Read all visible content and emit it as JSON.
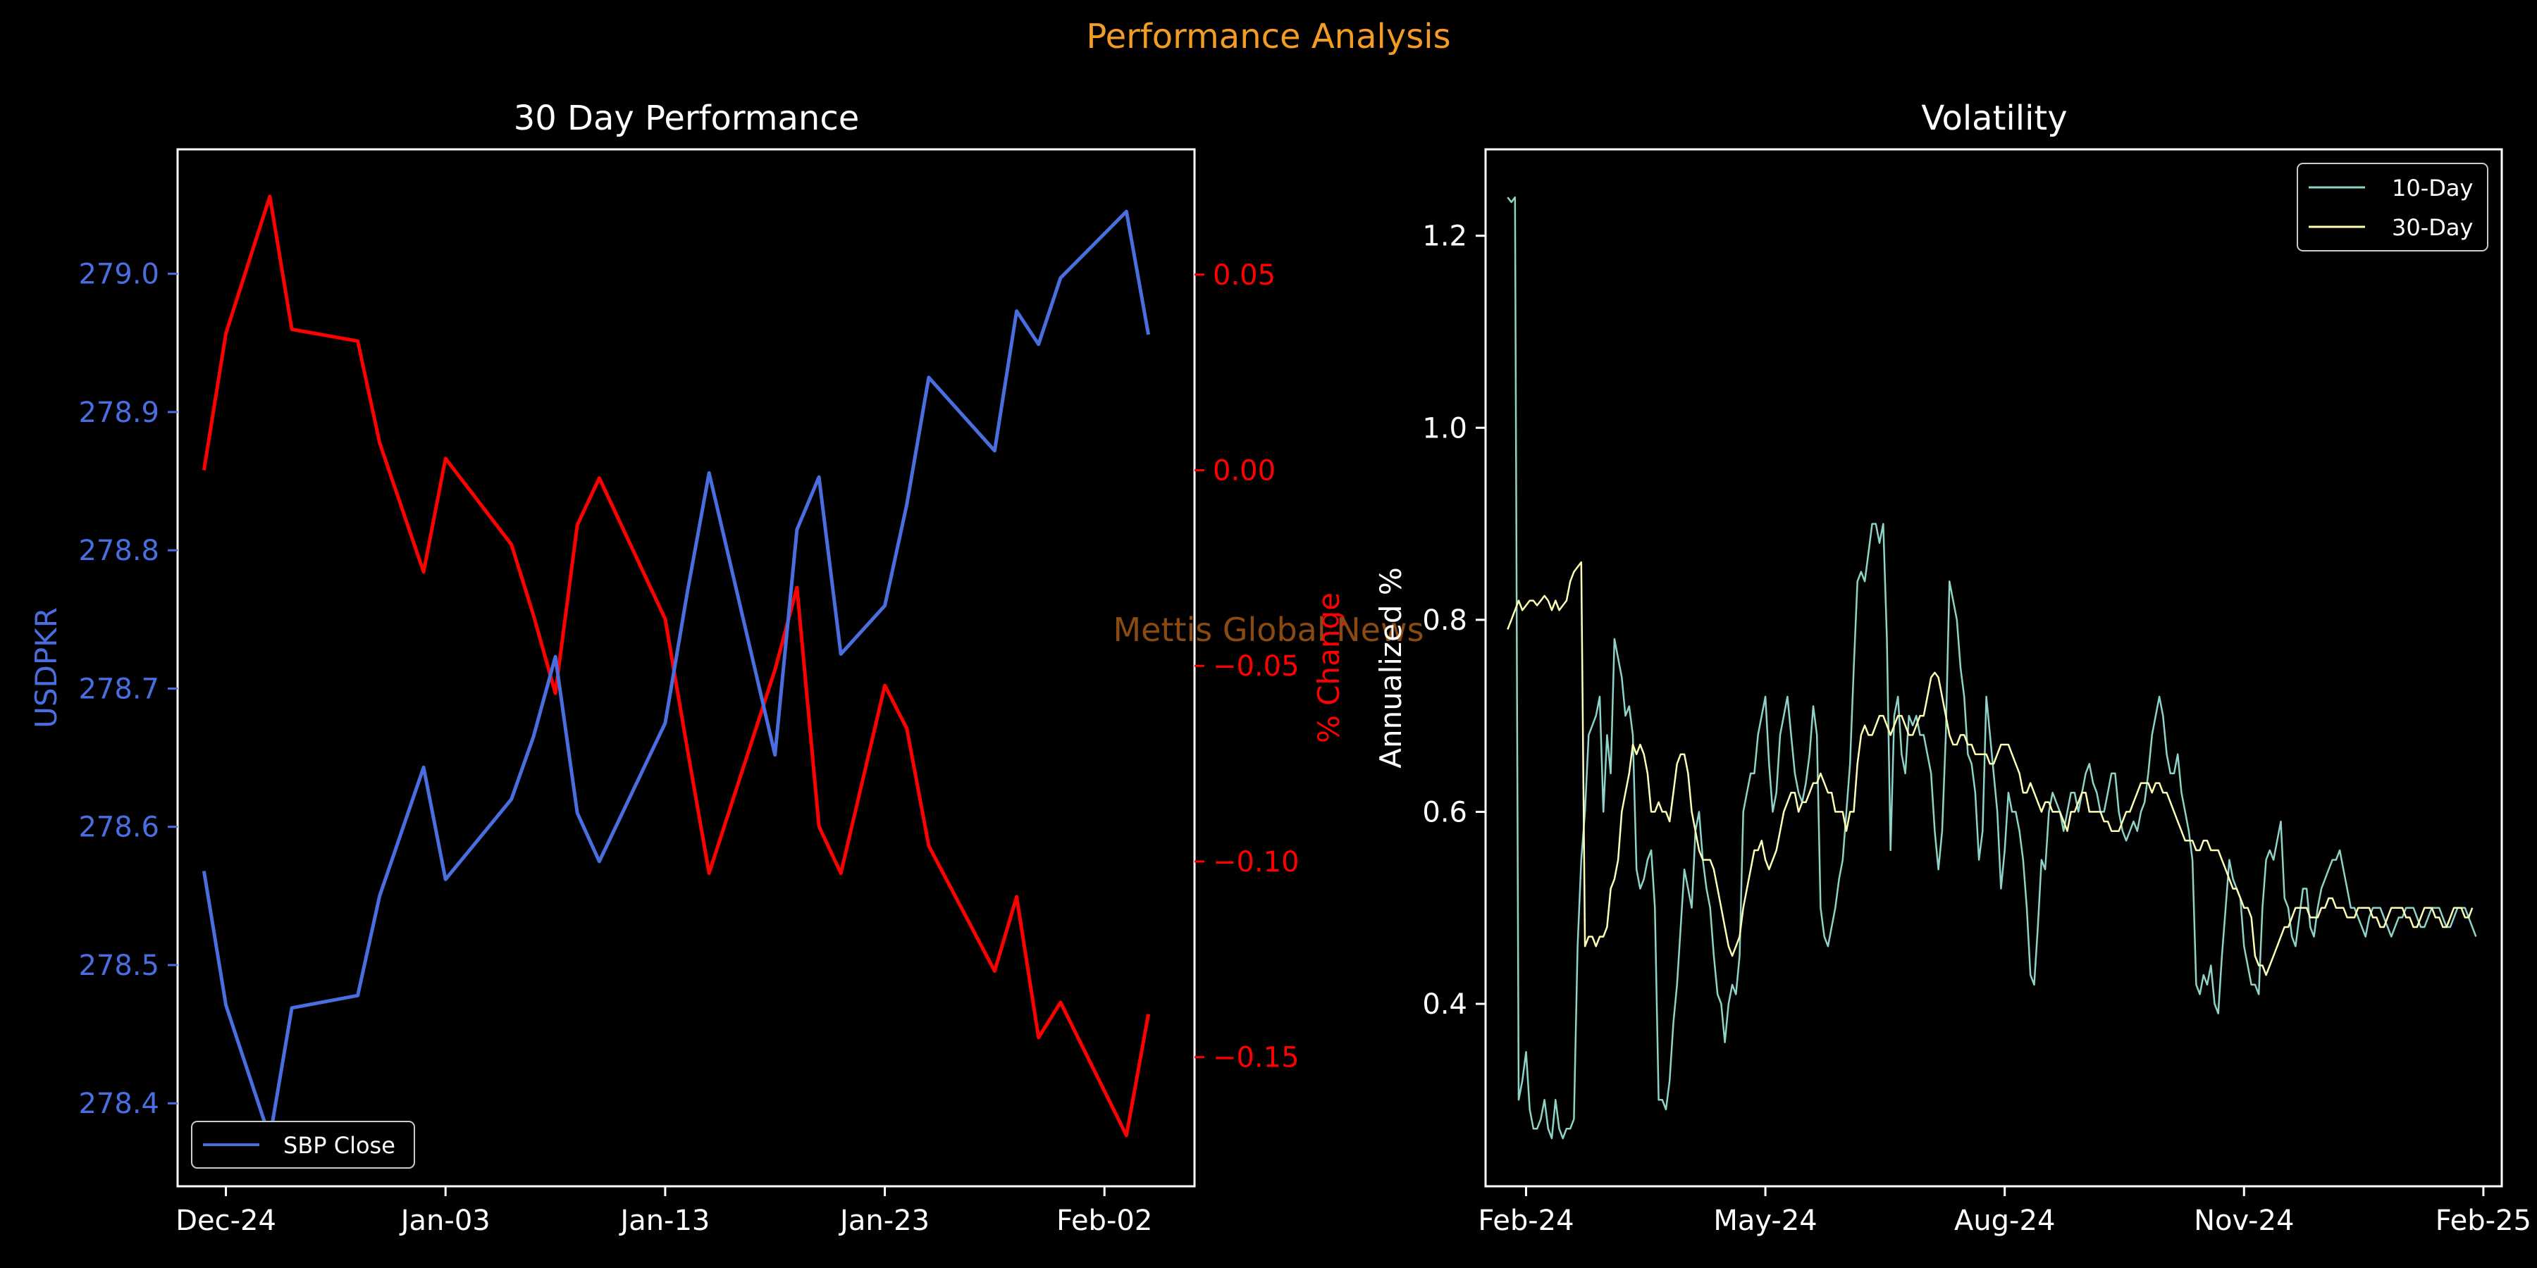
{
  "figure": {
    "suptitle": "Performance Analysis",
    "watermark": "Mettis Global News",
    "colors": {
      "background": "#000000",
      "suptitle": "#f39c24",
      "watermark": "#8a4a12",
      "axes": "#ffffff",
      "usd_line": "#4a6ee0",
      "pct_line": "#ff0000",
      "vol10": "#8dd3c7",
      "vol30": "#ffffb3"
    }
  },
  "chart_data": [
    {
      "type": "line",
      "title": "30 Day Performance",
      "xlabel": "",
      "ylabel": "USDPKR",
      "y2label": "% Change",
      "x_ticks": [
        {
          "label": "Dec-24",
          "day": 0
        },
        {
          "label": "Jan-03",
          "day": 10
        },
        {
          "label": "Jan-13",
          "day": 20
        },
        {
          "label": "Jan-23",
          "day": 30
        },
        {
          "label": "Feb-02",
          "day": 40
        }
      ],
      "xlim": [
        -2.2,
        44.1
      ],
      "ylim": [
        278.34,
        279.09
      ],
      "y_ticks": [
        "278.4",
        "278.5",
        "278.6",
        "278.7",
        "278.8",
        "278.9",
        "279.0"
      ],
      "y2lim": [
        -0.183,
        0.082
      ],
      "y2_ticks": [
        {
          "label": "0.05",
          "value": 0.05
        },
        {
          "label": "0.00",
          "value": 0.0
        },
        {
          "label": "−0.05",
          "value": -0.05
        },
        {
          "label": "−0.10",
          "value": -0.1
        },
        {
          "label": "−0.15",
          "value": -0.15
        }
      ],
      "legend": {
        "position": "lower-left",
        "entries": [
          "SBP Close"
        ]
      },
      "series": [
        {
          "name": "SBP Close",
          "axis": "left",
          "x": [
            -1,
            0,
            2,
            3,
            6,
            7,
            9,
            10,
            13,
            14,
            15,
            16,
            17,
            20,
            21,
            22,
            25,
            26,
            27,
            28,
            30,
            31,
            32,
            35,
            36,
            37,
            38,
            41,
            42
          ],
          "values": [
            278.568,
            278.471,
            278.375,
            278.469,
            278.478,
            278.55,
            278.643,
            278.562,
            278.62,
            278.665,
            278.723,
            278.61,
            278.575,
            278.675,
            278.769,
            278.856,
            278.652,
            278.815,
            278.853,
            278.725,
            278.76,
            278.833,
            278.925,
            278.872,
            278.973,
            278.949,
            278.997,
            279.045,
            278.956
          ]
        },
        {
          "name": "% Change",
          "axis": "right",
          "x": [
            -1,
            0,
            2,
            3,
            6,
            7,
            9,
            10,
            13,
            14,
            15,
            16,
            17,
            20,
            21,
            22,
            25,
            26,
            27,
            28,
            30,
            31,
            32,
            35,
            36,
            37,
            38,
            41,
            42
          ],
          "values": [
            0.0,
            0.035,
            0.07,
            0.036,
            0.033,
            0.007,
            -0.026,
            0.003,
            -0.019,
            -0.037,
            -0.057,
            -0.014,
            -0.002,
            -0.038,
            -0.071,
            -0.103,
            -0.051,
            -0.03,
            -0.091,
            -0.103,
            -0.055,
            -0.066,
            -0.096,
            -0.128,
            -0.109,
            -0.145,
            -0.136,
            -0.17,
            -0.139
          ]
        }
      ]
    },
    {
      "type": "line",
      "title": "Volatility",
      "xlabel": "",
      "ylabel": "Annualized %",
      "x_ticks": [
        {
          "label": "Feb-24",
          "index": 5
        },
        {
          "label": "May-24",
          "index": 70
        },
        {
          "label": "Aug-24",
          "index": 135
        },
        {
          "label": "Nov-24",
          "index": 200
        },
        {
          "label": "Feb-25",
          "index": 265
        }
      ],
      "xlim": [
        -6,
        270
      ],
      "ylim": [
        0.21,
        1.29
      ],
      "y_ticks": [
        {
          "label": "0.4",
          "value": 0.4
        },
        {
          "label": "0.6",
          "value": 0.6
        },
        {
          "label": "0.8",
          "value": 0.8
        },
        {
          "label": "1.0",
          "value": 1.0
        },
        {
          "label": "1.2",
          "value": 1.2
        }
      ],
      "legend": {
        "position": "top-right",
        "entries": [
          "10-Day",
          "30-Day"
        ]
      },
      "series": [
        {
          "name": "10-Day",
          "values": [
            1.24,
            1.235,
            1.24,
            0.3,
            0.32,
            0.35,
            0.29,
            0.27,
            0.27,
            0.28,
            0.3,
            0.27,
            0.26,
            0.3,
            0.27,
            0.26,
            0.27,
            0.27,
            0.28,
            0.46,
            0.55,
            0.6,
            0.68,
            0.69,
            0.7,
            0.72,
            0.6,
            0.68,
            0.64,
            0.78,
            0.76,
            0.74,
            0.7,
            0.71,
            0.68,
            0.54,
            0.52,
            0.53,
            0.55,
            0.56,
            0.5,
            0.3,
            0.3,
            0.29,
            0.32,
            0.38,
            0.42,
            0.48,
            0.54,
            0.52,
            0.5,
            0.58,
            0.6,
            0.55,
            0.52,
            0.5,
            0.45,
            0.41,
            0.4,
            0.36,
            0.4,
            0.42,
            0.41,
            0.45,
            0.6,
            0.62,
            0.64,
            0.64,
            0.68,
            0.7,
            0.72,
            0.65,
            0.6,
            0.62,
            0.68,
            0.7,
            0.72,
            0.68,
            0.64,
            0.62,
            0.61,
            0.63,
            0.66,
            0.71,
            0.68,
            0.5,
            0.47,
            0.46,
            0.48,
            0.5,
            0.53,
            0.55,
            0.6,
            0.65,
            0.75,
            0.84,
            0.85,
            0.84,
            0.87,
            0.9,
            0.9,
            0.88,
            0.9,
            0.78,
            0.56,
            0.7,
            0.72,
            0.66,
            0.64,
            0.7,
            0.69,
            0.7,
            0.68,
            0.68,
            0.66,
            0.64,
            0.58,
            0.54,
            0.58,
            0.68,
            0.84,
            0.82,
            0.8,
            0.75,
            0.72,
            0.66,
            0.65,
            0.62,
            0.55,
            0.58,
            0.72,
            0.68,
            0.64,
            0.6,
            0.52,
            0.56,
            0.62,
            0.6,
            0.6,
            0.58,
            0.55,
            0.5,
            0.43,
            0.42,
            0.48,
            0.55,
            0.54,
            0.6,
            0.62,
            0.61,
            0.6,
            0.58,
            0.6,
            0.62,
            0.62,
            0.6,
            0.62,
            0.64,
            0.65,
            0.63,
            0.62,
            0.6,
            0.6,
            0.62,
            0.64,
            0.64,
            0.6,
            0.58,
            0.57,
            0.58,
            0.59,
            0.58,
            0.6,
            0.61,
            0.64,
            0.68,
            0.7,
            0.72,
            0.7,
            0.66,
            0.64,
            0.64,
            0.66,
            0.62,
            0.6,
            0.58,
            0.55,
            0.42,
            0.41,
            0.43,
            0.42,
            0.44,
            0.4,
            0.39,
            0.45,
            0.5,
            0.55,
            0.53,
            0.52,
            0.51,
            0.46,
            0.44,
            0.42,
            0.42,
            0.41,
            0.5,
            0.55,
            0.56,
            0.55,
            0.57,
            0.59,
            0.51,
            0.5,
            0.47,
            0.46,
            0.49,
            0.52,
            0.52,
            0.48,
            0.47,
            0.5,
            0.52,
            0.53,
            0.54,
            0.55,
            0.55,
            0.56,
            0.54,
            0.52,
            0.5,
            0.5,
            0.49,
            0.48,
            0.47,
            0.49,
            0.5,
            0.5,
            0.5,
            0.49,
            0.48,
            0.47,
            0.48,
            0.49,
            0.49,
            0.5,
            0.5,
            0.5,
            0.49,
            0.48,
            0.48,
            0.49,
            0.5,
            0.5,
            0.5,
            0.49,
            0.48,
            0.48,
            0.49,
            0.5,
            0.5,
            0.5,
            0.49,
            0.48,
            0.47
          ]
        },
        {
          "name": "30-Day",
          "values": [
            0.79,
            0.8,
            0.81,
            0.82,
            0.81,
            0.815,
            0.82,
            0.82,
            0.815,
            0.82,
            0.825,
            0.82,
            0.81,
            0.82,
            0.81,
            0.815,
            0.82,
            0.84,
            0.85,
            0.855,
            0.86,
            0.46,
            0.47,
            0.47,
            0.46,
            0.47,
            0.47,
            0.48,
            0.52,
            0.53,
            0.55,
            0.6,
            0.62,
            0.64,
            0.67,
            0.66,
            0.67,
            0.66,
            0.64,
            0.6,
            0.6,
            0.61,
            0.6,
            0.6,
            0.59,
            0.62,
            0.65,
            0.66,
            0.66,
            0.64,
            0.6,
            0.58,
            0.56,
            0.55,
            0.55,
            0.55,
            0.54,
            0.52,
            0.5,
            0.48,
            0.46,
            0.45,
            0.46,
            0.47,
            0.5,
            0.52,
            0.54,
            0.56,
            0.56,
            0.57,
            0.55,
            0.54,
            0.55,
            0.56,
            0.58,
            0.6,
            0.61,
            0.62,
            0.62,
            0.6,
            0.61,
            0.61,
            0.62,
            0.63,
            0.63,
            0.64,
            0.63,
            0.62,
            0.62,
            0.6,
            0.6,
            0.6,
            0.58,
            0.6,
            0.6,
            0.65,
            0.68,
            0.69,
            0.68,
            0.68,
            0.69,
            0.7,
            0.7,
            0.69,
            0.68,
            0.69,
            0.7,
            0.7,
            0.69,
            0.68,
            0.68,
            0.69,
            0.7,
            0.7,
            0.72,
            0.74,
            0.745,
            0.74,
            0.72,
            0.7,
            0.68,
            0.67,
            0.67,
            0.68,
            0.68,
            0.67,
            0.67,
            0.66,
            0.66,
            0.66,
            0.66,
            0.65,
            0.65,
            0.66,
            0.67,
            0.67,
            0.67,
            0.66,
            0.65,
            0.64,
            0.62,
            0.62,
            0.63,
            0.62,
            0.61,
            0.6,
            0.61,
            0.61,
            0.6,
            0.6,
            0.6,
            0.59,
            0.58,
            0.6,
            0.6,
            0.61,
            0.62,
            0.62,
            0.6,
            0.6,
            0.6,
            0.6,
            0.59,
            0.59,
            0.58,
            0.58,
            0.58,
            0.59,
            0.6,
            0.6,
            0.61,
            0.62,
            0.63,
            0.63,
            0.63,
            0.62,
            0.63,
            0.63,
            0.62,
            0.62,
            0.61,
            0.6,
            0.59,
            0.58,
            0.57,
            0.57,
            0.57,
            0.56,
            0.56,
            0.57,
            0.57,
            0.56,
            0.56,
            0.56,
            0.55,
            0.54,
            0.53,
            0.52,
            0.52,
            0.51,
            0.5,
            0.5,
            0.49,
            0.45,
            0.44,
            0.44,
            0.43,
            0.44,
            0.45,
            0.46,
            0.47,
            0.48,
            0.48,
            0.49,
            0.5,
            0.5,
            0.5,
            0.5,
            0.49,
            0.49,
            0.49,
            0.5,
            0.5,
            0.51,
            0.51,
            0.5,
            0.5,
            0.5,
            0.49,
            0.49,
            0.49,
            0.5,
            0.5,
            0.5,
            0.5,
            0.49,
            0.49,
            0.48,
            0.48,
            0.49,
            0.5,
            0.5,
            0.5,
            0.5,
            0.49,
            0.49,
            0.48,
            0.48,
            0.49,
            0.5,
            0.5,
            0.5,
            0.49,
            0.49,
            0.48,
            0.48,
            0.49,
            0.5,
            0.5,
            0.5,
            0.49,
            0.49,
            0.5
          ]
        }
      ]
    }
  ]
}
